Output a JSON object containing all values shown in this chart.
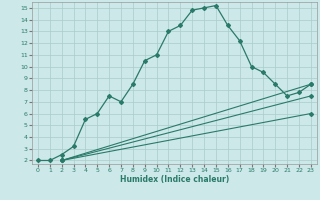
{
  "xlabel": "Humidex (Indice chaleur)",
  "bg_color": "#cce8e8",
  "line_color": "#2a7a6a",
  "grid_color": "#aacccc",
  "xlim": [
    -0.5,
    23.5
  ],
  "ylim": [
    1.7,
    15.5
  ],
  "xticks": [
    0,
    1,
    2,
    3,
    4,
    5,
    6,
    7,
    8,
    9,
    10,
    11,
    12,
    13,
    14,
    15,
    16,
    17,
    18,
    19,
    20,
    21,
    22,
    23
  ],
  "yticks": [
    2,
    3,
    4,
    5,
    6,
    7,
    8,
    9,
    10,
    11,
    12,
    13,
    14,
    15
  ],
  "curve1_x": [
    0,
    1,
    2,
    3,
    4,
    5,
    6,
    7,
    8,
    9,
    10,
    11,
    12,
    13,
    14,
    15,
    16,
    17,
    18,
    19,
    20,
    21,
    22,
    23
  ],
  "curve1_y": [
    2,
    2,
    2.5,
    3.2,
    5.5,
    6.0,
    7.5,
    7.0,
    8.5,
    10.5,
    11.0,
    13.0,
    13.5,
    14.8,
    15.0,
    15.2,
    13.5,
    12.2,
    10.0,
    9.5,
    8.5,
    7.5,
    7.8,
    8.5
  ],
  "line2_x": [
    2,
    23
  ],
  "line2_y": [
    2,
    8.5
  ],
  "line3_x": [
    2,
    23
  ],
  "line3_y": [
    2,
    7.5
  ],
  "line4_x": [
    2,
    23
  ],
  "line4_y": [
    2,
    6.0
  ]
}
